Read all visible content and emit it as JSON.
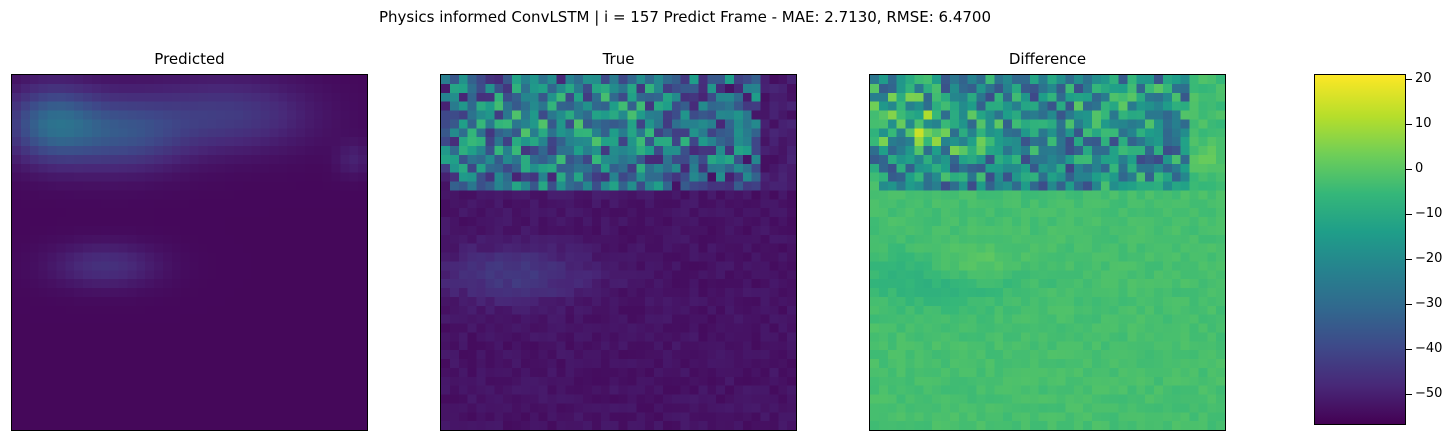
{
  "chart_data": {
    "type": "heatmap",
    "title": "Physics informed ConvLSTM | i = 157 Predict Frame - MAE: 2.7130, RMSE: 6.4700",
    "panels": [
      {
        "title": "Predicted",
        "cmap": "viridis"
      },
      {
        "title": "True",
        "cmap": "viridis"
      },
      {
        "title": "Difference",
        "cmap": "viridis"
      }
    ],
    "grid_size": [
      40,
      40
    ],
    "colorbar": {
      "range": [
        -57,
        21
      ],
      "ticks": [
        20,
        10,
        0,
        -10,
        -20,
        -30,
        -40,
        -50
      ],
      "tick_labels": [
        "20",
        "10",
        "0",
        "−10",
        "−20",
        "−30",
        "−40",
        "−50"
      ]
    },
    "xticks": [],
    "yticks": []
  }
}
